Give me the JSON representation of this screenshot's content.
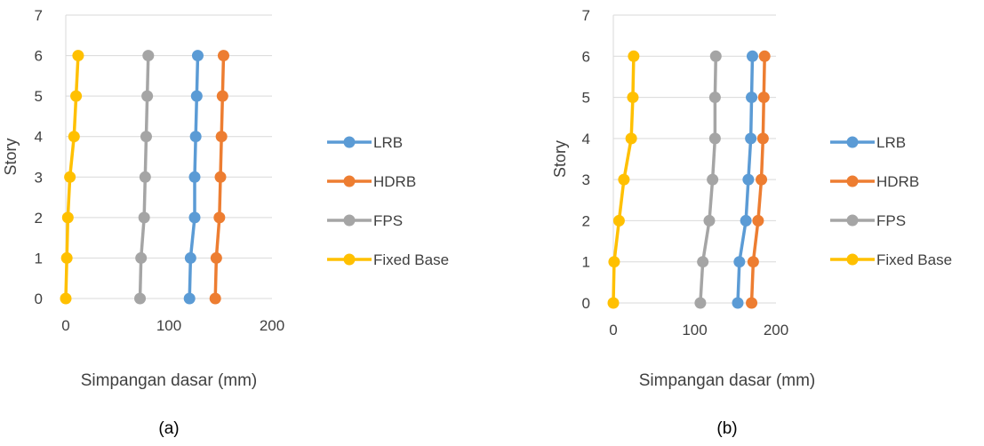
{
  "colors": {
    "lrb": "#5B9BD5",
    "hdrb": "#ED7D31",
    "fps": "#A5A5A5",
    "fixed_base": "#FFC000",
    "grid": "#D9D9D9",
    "text": "#404040"
  },
  "chart_data": [
    {
      "type": "line",
      "title": "",
      "panel_label": "(a)",
      "xlabel": "Simpangan dasar (mm)",
      "ylabel": "Story",
      "xlim": [
        0,
        200
      ],
      "xticks": [
        0,
        100,
        200
      ],
      "ylim": [
        0,
        7
      ],
      "yticks": [
        0,
        1,
        2,
        3,
        4,
        5,
        6,
        7
      ],
      "grid": "horizontal",
      "legend_position": "right",
      "series": [
        {
          "name": "LRB",
          "color_key": "lrb",
          "x": [
            120,
            121,
            125,
            125,
            126,
            127,
            128
          ],
          "y": [
            0,
            1,
            2,
            3,
            4,
            5,
            6
          ]
        },
        {
          "name": "HDRB",
          "color_key": "hdrb",
          "x": [
            145,
            146,
            149,
            150,
            151,
            152,
            153
          ],
          "y": [
            0,
            1,
            2,
            3,
            4,
            5,
            6
          ]
        },
        {
          "name": "FPS",
          "color_key": "fps",
          "x": [
            72,
            73,
            76,
            77,
            78,
            79,
            80
          ],
          "y": [
            0,
            1,
            2,
            3,
            4,
            5,
            6
          ]
        },
        {
          "name": "Fixed Base",
          "color_key": "fixed_base",
          "x": [
            0,
            1,
            2,
            4,
            8,
            10,
            12
          ],
          "y": [
            0,
            1,
            2,
            3,
            4,
            5,
            6
          ]
        }
      ]
    },
    {
      "type": "line",
      "title": "",
      "panel_label": "(b)",
      "xlabel": "Simpangan dasar (mm)",
      "ylabel": "Story",
      "xlim": [
        0,
        200
      ],
      "xticks": [
        0,
        100,
        200
      ],
      "ylim": [
        0,
        7
      ],
      "yticks": [
        0,
        1,
        2,
        3,
        4,
        5,
        6,
        7
      ],
      "grid": "horizontal",
      "legend_position": "right",
      "series": [
        {
          "name": "LRB",
          "color_key": "lrb",
          "x": [
            153,
            155,
            163,
            166,
            169,
            170,
            171
          ],
          "y": [
            0,
            1,
            2,
            3,
            4,
            5,
            6
          ]
        },
        {
          "name": "HDRB",
          "color_key": "hdrb",
          "x": [
            170,
            172,
            178,
            182,
            184,
            185,
            186
          ],
          "y": [
            0,
            1,
            2,
            3,
            4,
            5,
            6
          ]
        },
        {
          "name": "FPS",
          "color_key": "fps",
          "x": [
            107,
            110,
            118,
            122,
            125,
            125,
            126
          ],
          "y": [
            0,
            1,
            2,
            3,
            4,
            5,
            6
          ]
        },
        {
          "name": "Fixed Base",
          "color_key": "fixed_base",
          "x": [
            0,
            1,
            7,
            13,
            22,
            24,
            25
          ],
          "y": [
            0,
            1,
            2,
            3,
            4,
            5,
            6
          ]
        }
      ]
    }
  ]
}
